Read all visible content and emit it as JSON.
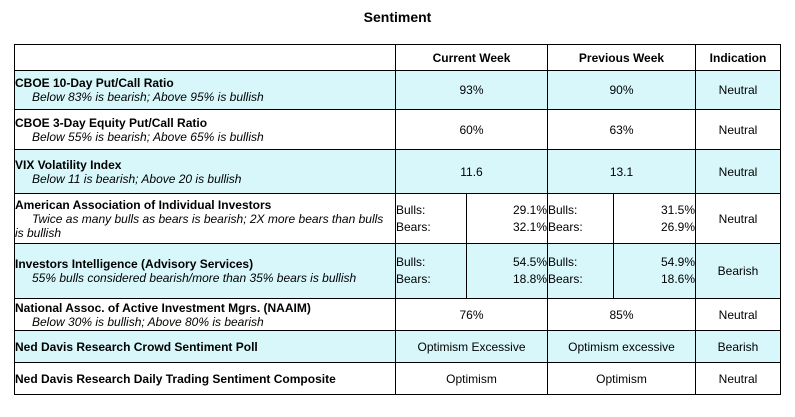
{
  "title": "Sentiment",
  "headers": {
    "indicator": "",
    "current": "Current Week",
    "previous": "Previous Week",
    "indication": "Indication"
  },
  "rows": [
    {
      "name": "CBOE 10-Day Put/Call Ratio",
      "note": "Below 83% is bearish; Above 95% is bullish",
      "current": "93%",
      "previous": "90%",
      "indication": "Neutral",
      "shaded": true
    },
    {
      "name": "CBOE 3-Day Equity Put/Call Ratio",
      "note": "Below 55% is bearish; Above 65% is bullish",
      "current": "60%",
      "previous": "63%",
      "indication": "Neutral",
      "shaded": false
    },
    {
      "name": "VIX Volatility Index",
      "note": "Below 11 is bearish; Above 20 is bullish",
      "current": "11.6",
      "previous": "13.1",
      "indication": "Neutral",
      "shaded": true
    },
    {
      "name": "American Association of Individual Investors",
      "note": "Twice as many bulls as bears is bearish; 2X more bears than bulls is bullish",
      "bulls_label": "Bulls:",
      "bears_label": "Bears:",
      "current_bulls": "29.1%",
      "current_bears": "32.1%",
      "previous_bulls": "31.5%",
      "previous_bears": "26.9%",
      "indication": "Neutral",
      "shaded": false
    },
    {
      "name": "Investors Intelligence (Advisory Services)",
      "note": "55% bulls considered bearish/more than 35% bears is bullish",
      "bulls_label": "Bulls:",
      "bears_label": "Bears:",
      "current_bulls": "54.5%",
      "current_bears": "18.8%",
      "previous_bulls": "54.9%",
      "previous_bears": "18.6%",
      "indication": "Bearish",
      "shaded": true
    },
    {
      "name": "National Assoc. of Active Investment Mgrs. (NAAIM)",
      "note": "Below 30% is bullish; Above 80% is bearish",
      "current": "76%",
      "previous": "85%",
      "indication": "Neutral",
      "shaded": false
    },
    {
      "name": "Ned Davis Research Crowd Sentiment Poll",
      "current": "Optimism Excessive",
      "previous": "Optimism excessive",
      "indication": "Bearish",
      "shaded": true
    },
    {
      "name": "Ned Davis Research Daily Trading Sentiment Composite",
      "current": "Optimism",
      "previous": "Optimism",
      "indication": "Neutral",
      "shaded": false
    }
  ],
  "colors": {
    "shade": "#d7f7fb",
    "border": "#000000"
  }
}
